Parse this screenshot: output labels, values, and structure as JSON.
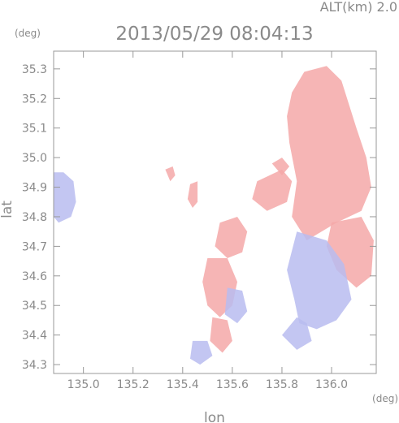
{
  "header": {
    "altitude_label": "ALT(km)  2.0",
    "timestamp": "2013/05/29  08:04:13"
  },
  "axes": {
    "x_label": "lon",
    "y_label": "lat",
    "x_unit": "(deg)",
    "y_unit": "(deg)",
    "x_range": [
      134.88,
      136.18
    ],
    "y_range": [
      34.27,
      35.36
    ],
    "x_ticks": [
      "135.0",
      "135.2",
      "135.4",
      "135.6",
      "135.8",
      "136.0"
    ],
    "x_tick_values": [
      135.0,
      135.2,
      135.4,
      135.6,
      135.8,
      136.0
    ],
    "y_ticks": [
      "34.3",
      "34.4",
      "34.5",
      "34.6",
      "34.7",
      "34.8",
      "34.9",
      "35.0",
      "35.1",
      "35.2",
      "35.3"
    ],
    "y_tick_values": [
      34.3,
      34.4,
      34.5,
      34.6,
      34.7,
      34.8,
      34.9,
      35.0,
      35.1,
      35.2,
      35.3
    ]
  },
  "colors": {
    "receding": "#f4a8a8",
    "approaching": "#b8bcf0",
    "frame": "#999999",
    "text": "#8a8a8a"
  },
  "echoes": [
    {
      "name": "east-red-mass",
      "type": "receding",
      "pts": [
        [
          135.89,
          35.29
        ],
        [
          135.98,
          35.31
        ],
        [
          136.04,
          35.26
        ],
        [
          136.1,
          35.1
        ],
        [
          136.14,
          35.0
        ],
        [
          136.16,
          34.9
        ],
        [
          136.12,
          34.82
        ],
        [
          136.02,
          34.78
        ],
        [
          135.9,
          34.72
        ],
        [
          135.84,
          34.8
        ],
        [
          135.86,
          34.92
        ],
        [
          135.83,
          35.05
        ],
        [
          135.82,
          35.14
        ],
        [
          135.84,
          35.22
        ]
      ]
    },
    {
      "name": "east-lower-red",
      "type": "receding",
      "pts": [
        [
          136.0,
          34.78
        ],
        [
          136.12,
          34.8
        ],
        [
          136.17,
          34.72
        ],
        [
          136.16,
          34.6
        ],
        [
          136.1,
          34.56
        ],
        [
          136.02,
          34.62
        ],
        [
          135.98,
          34.7
        ]
      ]
    },
    {
      "name": "east-blue-mass",
      "type": "approaching",
      "pts": [
        [
          135.86,
          34.75
        ],
        [
          135.98,
          34.72
        ],
        [
          136.05,
          34.64
        ],
        [
          136.08,
          34.52
        ],
        [
          136.02,
          34.45
        ],
        [
          135.94,
          34.42
        ],
        [
          135.87,
          34.44
        ],
        [
          135.85,
          34.52
        ],
        [
          135.82,
          34.62
        ]
      ]
    },
    {
      "name": "east-blue-tail",
      "type": "approaching",
      "pts": [
        [
          135.86,
          34.46
        ],
        [
          135.9,
          34.44
        ],
        [
          135.92,
          34.38
        ],
        [
          135.86,
          34.35
        ],
        [
          135.8,
          34.4
        ]
      ]
    },
    {
      "name": "north-red-band",
      "type": "receding",
      "pts": [
        [
          135.7,
          34.92
        ],
        [
          135.8,
          34.96
        ],
        [
          135.84,
          34.92
        ],
        [
          135.82,
          34.85
        ],
        [
          135.74,
          34.82
        ],
        [
          135.68,
          34.86
        ]
      ]
    },
    {
      "name": "north-red-top",
      "type": "receding",
      "pts": [
        [
          135.76,
          34.98
        ],
        [
          135.8,
          35.0
        ],
        [
          135.83,
          34.97
        ],
        [
          135.8,
          34.94
        ]
      ]
    },
    {
      "name": "west-blue-patch",
      "type": "approaching",
      "pts": [
        [
          134.88,
          34.95
        ],
        [
          134.92,
          34.95
        ],
        [
          134.96,
          34.92
        ],
        [
          134.97,
          34.85
        ],
        [
          134.95,
          34.8
        ],
        [
          134.9,
          34.78
        ],
        [
          134.88,
          34.8
        ]
      ]
    },
    {
      "name": "mid-red-fleck",
      "type": "receding",
      "pts": [
        [
          135.33,
          34.96
        ],
        [
          135.36,
          34.97
        ],
        [
          135.37,
          34.94
        ],
        [
          135.35,
          34.92
        ]
      ]
    },
    {
      "name": "mid-red-column",
      "type": "receding",
      "pts": [
        [
          135.43,
          34.91
        ],
        [
          135.46,
          34.92
        ],
        [
          135.46,
          34.85
        ],
        [
          135.44,
          34.83
        ],
        [
          135.42,
          34.86
        ]
      ]
    },
    {
      "name": "center-red-cluster",
      "type": "receding",
      "pts": [
        [
          135.55,
          34.78
        ],
        [
          135.62,
          34.8
        ],
        [
          135.66,
          34.75
        ],
        [
          135.64,
          34.68
        ],
        [
          135.58,
          34.66
        ],
        [
          135.53,
          34.7
        ]
      ]
    },
    {
      "name": "south-red-cluster",
      "type": "receding",
      "pts": [
        [
          135.5,
          34.66
        ],
        [
          135.58,
          34.66
        ],
        [
          135.62,
          34.58
        ],
        [
          135.6,
          34.5
        ],
        [
          135.55,
          34.46
        ],
        [
          135.5,
          34.5
        ],
        [
          135.48,
          34.58
        ]
      ]
    },
    {
      "name": "south-blue-cluster",
      "type": "approaching",
      "pts": [
        [
          135.58,
          34.56
        ],
        [
          135.64,
          34.55
        ],
        [
          135.66,
          34.48
        ],
        [
          135.62,
          34.44
        ],
        [
          135.57,
          34.47
        ]
      ]
    },
    {
      "name": "tail-red-cluster",
      "type": "receding",
      "pts": [
        [
          135.52,
          34.46
        ],
        [
          135.58,
          34.45
        ],
        [
          135.6,
          34.38
        ],
        [
          135.56,
          34.34
        ],
        [
          135.51,
          34.38
        ]
      ]
    },
    {
      "name": "tail-blue-cluster",
      "type": "approaching",
      "pts": [
        [
          135.44,
          34.38
        ],
        [
          135.5,
          34.38
        ],
        [
          135.52,
          34.33
        ],
        [
          135.47,
          34.3
        ],
        [
          135.43,
          34.32
        ]
      ]
    }
  ]
}
